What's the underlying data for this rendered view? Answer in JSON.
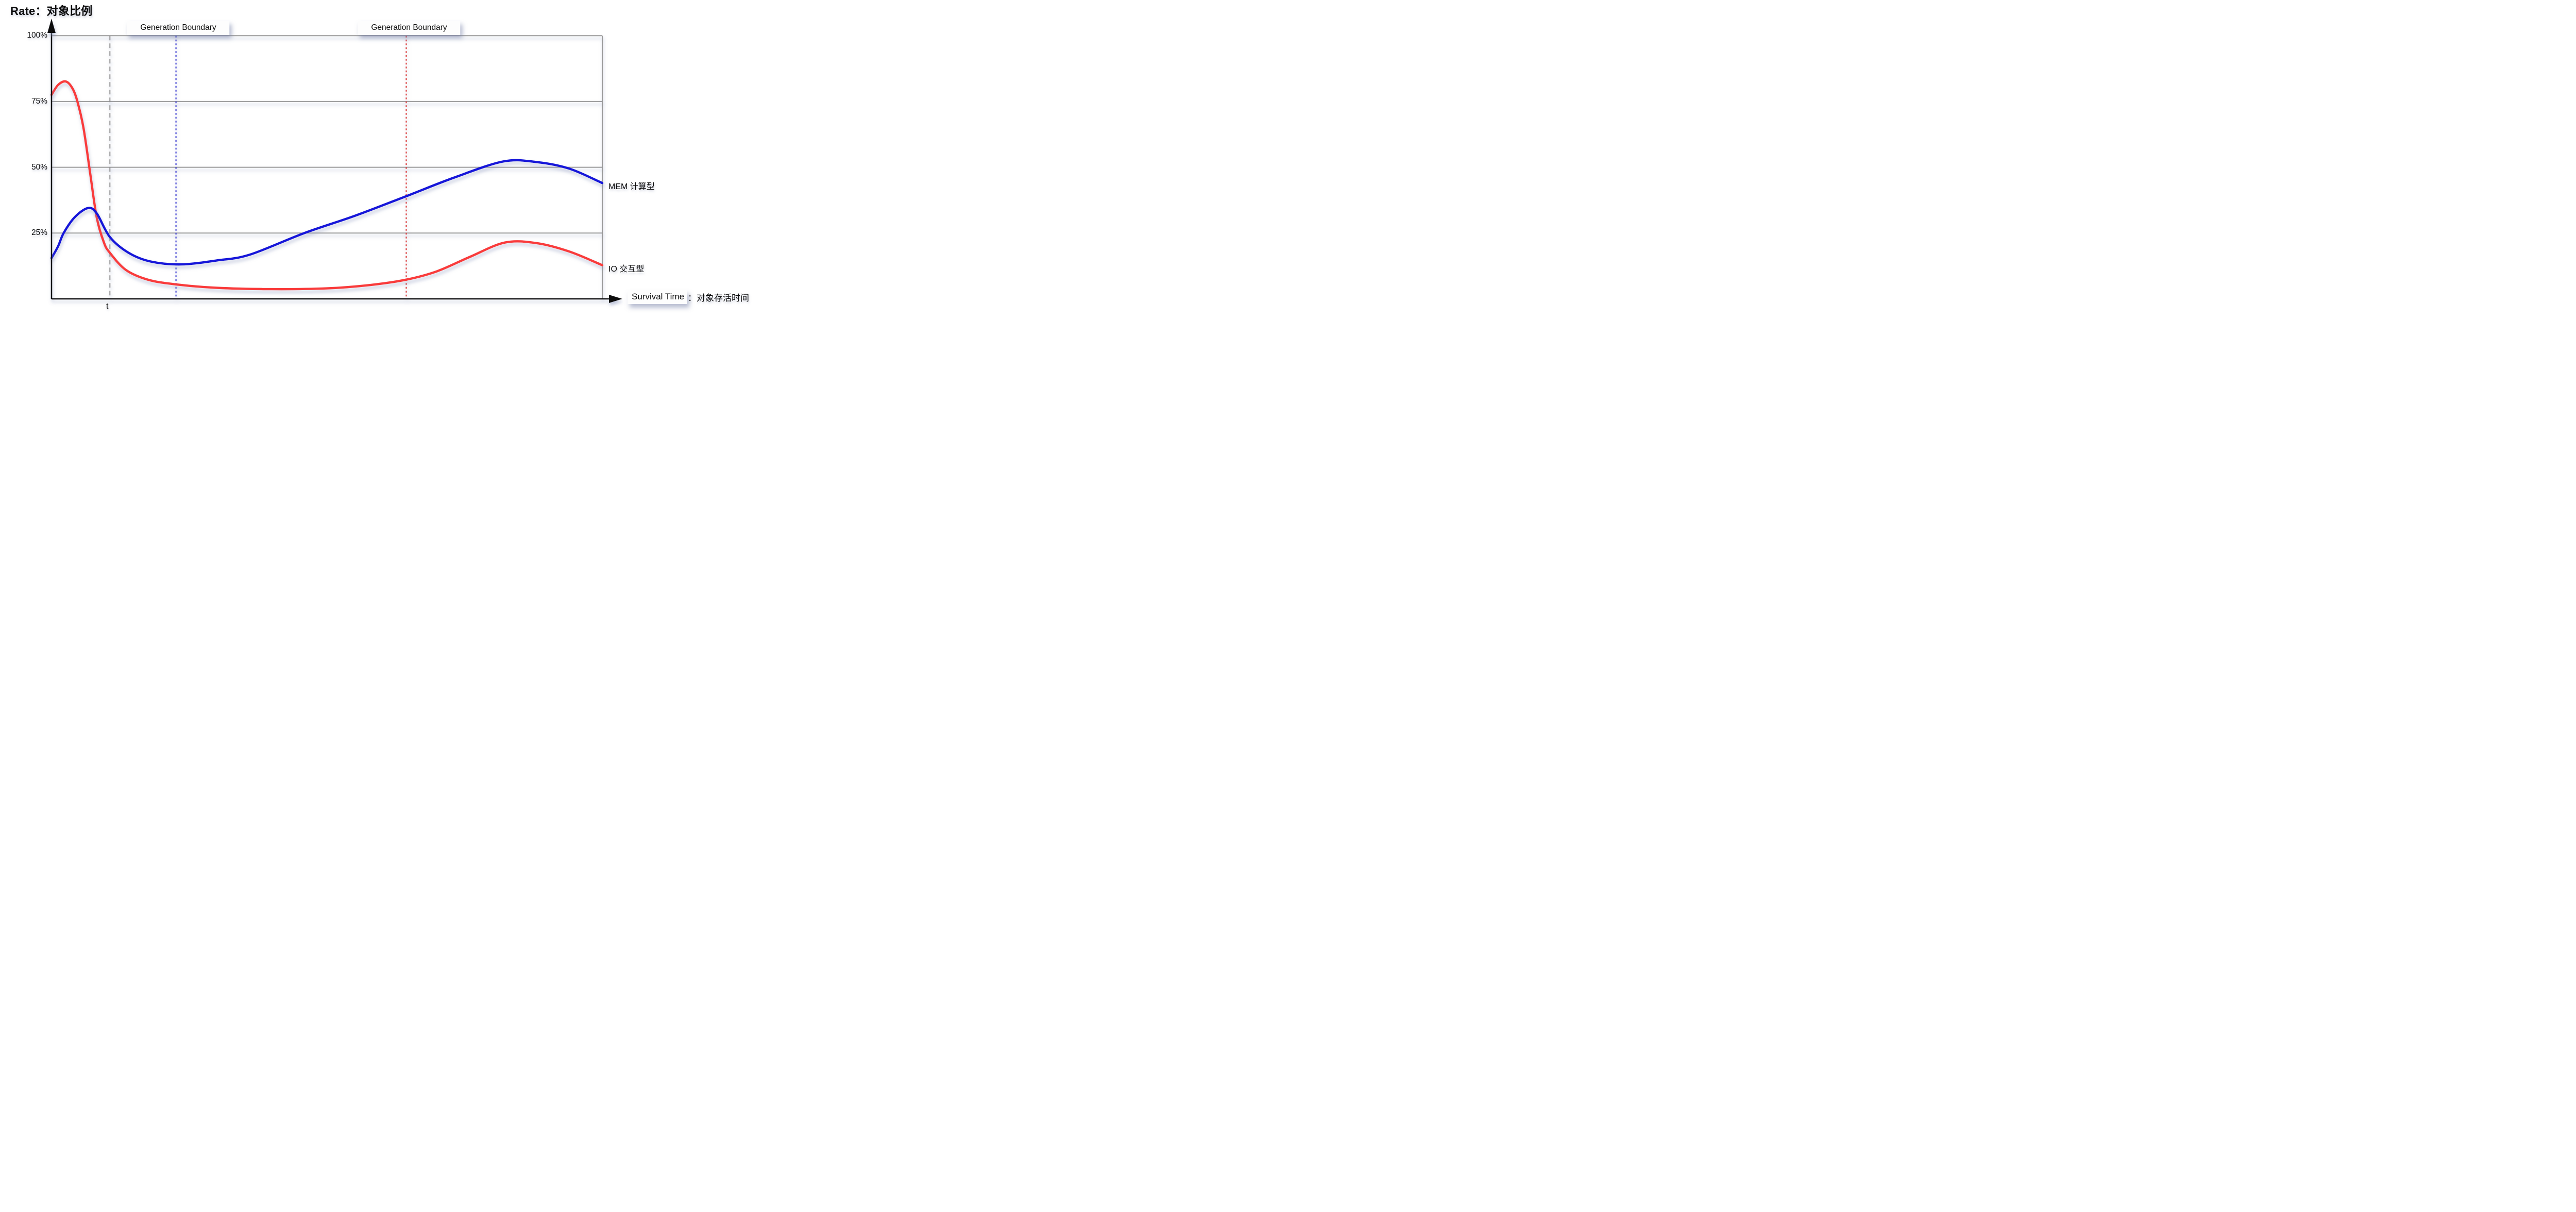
{
  "title": "Rate：对象比例",
  "y_axis": {
    "tick_labels": [
      "100%",
      "75%",
      "50%",
      "25%"
    ]
  },
  "x_axis": {
    "label_en": "Survival Time",
    "label_cn": "：对象存活时间",
    "t_marker": "t"
  },
  "annotations": {
    "generation_boundary_1": "Generation Boundary",
    "generation_boundary_2": "Generation Boundary"
  },
  "series_labels": {
    "mem": "MEM 计算型",
    "io": "IO 交互型"
  },
  "colors": {
    "io_curve": "#f93b3b",
    "mem_curve": "#1616d9",
    "gridline": "#9a9a9a",
    "t_line": "#8f8f8f",
    "boundary_line_blue": "#2121cc",
    "boundary_line_red": "#d92b2b",
    "axis": "#111111",
    "background": "#ffffff"
  },
  "chart_data": {
    "type": "line",
    "title": "Rate：对象比例",
    "xlabel": "Survival Time：对象存活时间",
    "ylabel": "Rate：对象比例",
    "xlim": [
      0,
      100
    ],
    "ylim": [
      0,
      100
    ],
    "grid": "horizontal",
    "legend_position": "right-of-curve-ends",
    "y_ticks": [
      {
        "value": 100,
        "label": "100%"
      },
      {
        "value": 75,
        "label": "75%"
      },
      {
        "value": 50,
        "label": "50%"
      },
      {
        "value": 25,
        "label": "25%"
      }
    ],
    "series": [
      {
        "name": "IO 交互型",
        "color": "#f93b3b",
        "points": [
          [
            0,
            77.5
          ],
          [
            1.2,
            81.3
          ],
          [
            2.6,
            82.6
          ],
          [
            3.8,
            80
          ],
          [
            4.7,
            75
          ],
          [
            5.8,
            65
          ],
          [
            7,
            48
          ],
          [
            8.2,
            31
          ],
          [
            9.5,
            21.5
          ],
          [
            10.6,
            17.5
          ],
          [
            13.5,
            11
          ],
          [
            17.5,
            7.3
          ],
          [
            22.6,
            5.5
          ],
          [
            30,
            4.2
          ],
          [
            40,
            3.7
          ],
          [
            50,
            4
          ],
          [
            58,
            5.3
          ],
          [
            64.4,
            7.3
          ],
          [
            70,
            10.5
          ],
          [
            76,
            16
          ],
          [
            82.3,
            21.4
          ],
          [
            88,
            21.2
          ],
          [
            94,
            18
          ],
          [
            100,
            12.8
          ]
        ]
      },
      {
        "name": "MEM 计算型",
        "color": "#1616d9",
        "points": [
          [
            0,
            15.5
          ],
          [
            1.2,
            20
          ],
          [
            2.2,
            25
          ],
          [
            4.2,
            31
          ],
          [
            6.6,
            34.5
          ],
          [
            8.2,
            32.5
          ],
          [
            10.6,
            23.5
          ],
          [
            14,
            17.5
          ],
          [
            18,
            14.2
          ],
          [
            23.5,
            13.1
          ],
          [
            30,
            14.6
          ],
          [
            36,
            16.8
          ],
          [
            45.9,
            25
          ],
          [
            55,
            31.5
          ],
          [
            64.4,
            39
          ],
          [
            73,
            46
          ],
          [
            82,
            52.2
          ],
          [
            88,
            52
          ],
          [
            94,
            49.5
          ],
          [
            100,
            44
          ]
        ]
      }
    ],
    "vlines": [
      {
        "x": 10.6,
        "style": "dashed",
        "color": "#8f8f8f",
        "label": "t"
      },
      {
        "x": 22.6,
        "style": "dotted",
        "color": "#2121cc",
        "label": "Generation Boundary"
      },
      {
        "x": 64.4,
        "style": "dotted",
        "color": "#d92b2b",
        "label": "Generation Boundary"
      }
    ]
  }
}
